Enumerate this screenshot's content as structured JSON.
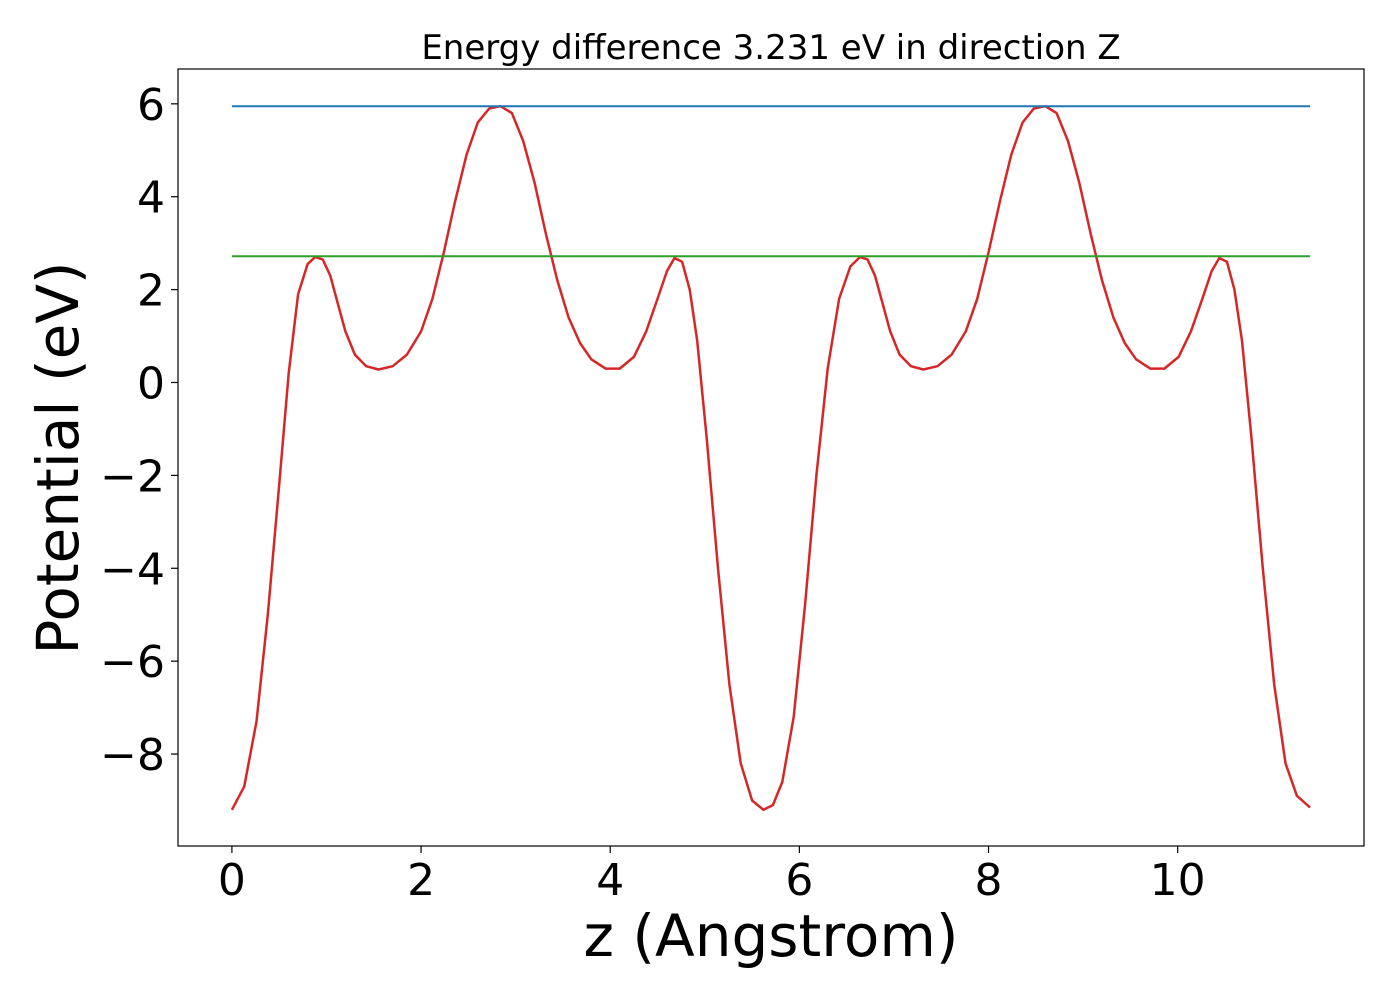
{
  "chart_data": {
    "type": "line",
    "title": "Energy difference 3.231 eV in direction Z",
    "xlabel": "z (Angstrom)",
    "ylabel": "Potential (eV)",
    "xlim": [
      -0.57,
      11.97
    ],
    "ylim": [
      -9.98,
      6.75
    ],
    "xticks": [
      0,
      2,
      4,
      6,
      8,
      10
    ],
    "xtick_labels": [
      "0",
      "2",
      "4",
      "6",
      "8",
      "10"
    ],
    "yticks": [
      6,
      4,
      2,
      0,
      -2,
      -4,
      -6,
      -8
    ],
    "ytick_labels": [
      "6",
      "4",
      "2",
      "0",
      "−2",
      "−4",
      "−6",
      "−8"
    ],
    "grid": false,
    "series": [
      {
        "color": "#d62728",
        "x": [
          0.0,
          0.13,
          0.26,
          0.38,
          0.5,
          0.6,
          0.7,
          0.8,
          0.88,
          0.96,
          1.04,
          1.12,
          1.2,
          1.3,
          1.42,
          1.55,
          1.7,
          1.85,
          2.0,
          2.12,
          2.24,
          2.36,
          2.48,
          2.6,
          2.72,
          2.84,
          2.96,
          3.08,
          3.2,
          3.32,
          3.44,
          3.56,
          3.68,
          3.8,
          3.95,
          4.1,
          4.25,
          4.38,
          4.5,
          4.6,
          4.68,
          4.76,
          4.84,
          4.92,
          5.02,
          5.14,
          5.26,
          5.38,
          5.5,
          5.62,
          5.72,
          5.82,
          5.94,
          6.06,
          6.18,
          6.3,
          6.42,
          6.54,
          6.64,
          6.72,
          6.8,
          6.88,
          6.96,
          7.06,
          7.18,
          7.31,
          7.46,
          7.61,
          7.76,
          7.88,
          8.0,
          8.12,
          8.24,
          8.36,
          8.48,
          8.6,
          8.72,
          8.84,
          8.96,
          9.08,
          9.2,
          9.32,
          9.44,
          9.56,
          9.71,
          9.86,
          10.01,
          10.14,
          10.26,
          10.36,
          10.44,
          10.52,
          10.6,
          10.68,
          10.78,
          10.9,
          11.02,
          11.14,
          11.26,
          11.4
        ],
        "y": [
          -9.2,
          -8.7,
          -7.3,
          -5.0,
          -2.2,
          0.2,
          1.9,
          2.55,
          2.7,
          2.65,
          2.3,
          1.7,
          1.1,
          0.6,
          0.35,
          0.28,
          0.35,
          0.6,
          1.1,
          1.8,
          2.8,
          3.9,
          4.9,
          5.6,
          5.9,
          5.95,
          5.8,
          5.2,
          4.3,
          3.2,
          2.2,
          1.4,
          0.85,
          0.5,
          0.3,
          0.3,
          0.55,
          1.1,
          1.8,
          2.4,
          2.68,
          2.6,
          2.0,
          0.9,
          -1.2,
          -4.0,
          -6.5,
          -8.2,
          -9.0,
          -9.2,
          -9.1,
          -8.6,
          -7.2,
          -4.8,
          -2.0,
          0.3,
          1.8,
          2.5,
          2.7,
          2.65,
          2.3,
          1.7,
          1.1,
          0.6,
          0.35,
          0.28,
          0.35,
          0.6,
          1.1,
          1.8,
          2.8,
          3.9,
          4.9,
          5.6,
          5.9,
          5.95,
          5.8,
          5.2,
          4.3,
          3.2,
          2.2,
          1.4,
          0.85,
          0.5,
          0.3,
          0.3,
          0.55,
          1.1,
          1.8,
          2.4,
          2.68,
          2.6,
          2.0,
          0.9,
          -1.2,
          -4.0,
          -6.5,
          -8.2,
          -8.9,
          -9.15
        ]
      },
      {
        "color": "#1f77b4",
        "x": [
          0.0,
          11.4
        ],
        "y": [
          5.95,
          5.95
        ]
      },
      {
        "color": "#2ca02c",
        "x": [
          0.0,
          11.4
        ],
        "y": [
          2.72,
          2.72
        ]
      }
    ]
  }
}
